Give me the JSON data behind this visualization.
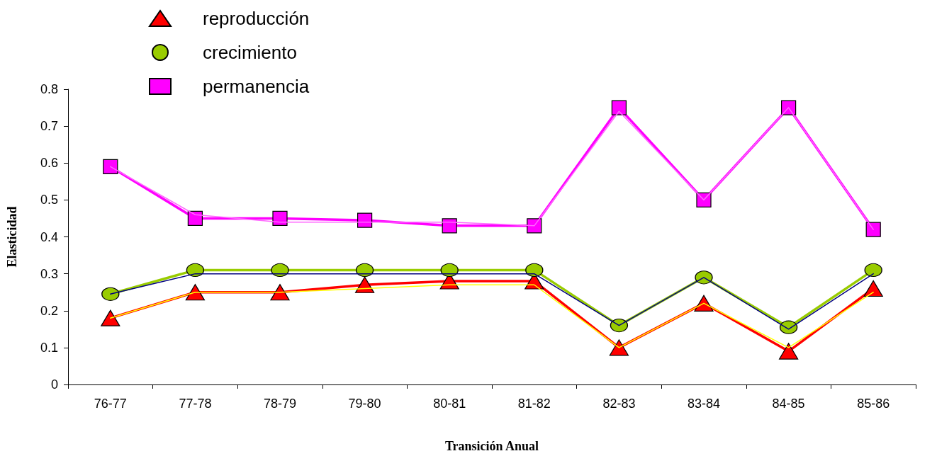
{
  "chart_data": {
    "type": "line",
    "xlabel": "Transición Anual",
    "ylabel": "Elasticidad",
    "categories": [
      "76-77",
      "77-78",
      "78-79",
      "79-80",
      "80-81",
      "81-82",
      "82-83",
      "83-84",
      "84-85",
      "85-86"
    ],
    "ylim": [
      0,
      0.8
    ],
    "yticks": [
      0,
      0.1,
      0.2,
      0.3,
      0.4,
      0.5,
      0.6,
      0.7,
      0.8
    ],
    "grid": false,
    "legend": "top left",
    "line_style": "solid",
    "series": [
      {
        "color": "#ffff00",
        "marker": "none",
        "values": [
          0.18,
          0.25,
          0.25,
          0.26,
          0.27,
          0.27,
          0.1,
          0.22,
          0.1,
          0.25
        ]
      },
      {
        "color": "#000080",
        "marker": "none",
        "values": [
          0.245,
          0.3,
          0.3,
          0.3,
          0.3,
          0.3,
          0.16,
          0.29,
          0.15,
          0.3
        ]
      },
      {
        "color": "#ff66ff",
        "marker": "none",
        "values": [
          0.59,
          0.46,
          0.44,
          0.44,
          0.44,
          0.43,
          0.74,
          0.5,
          0.75,
          0.42
        ]
      },
      {
        "name": "reproducción",
        "color": "#ff0000",
        "marker": "triangle",
        "values": [
          0.18,
          0.25,
          0.25,
          0.27,
          0.28,
          0.28,
          0.1,
          0.22,
          0.09,
          0.26
        ]
      },
      {
        "name": "crecimiento",
        "color": "#99cc00",
        "marker": "circle",
        "values": [
          0.245,
          0.31,
          0.31,
          0.31,
          0.31,
          0.31,
          0.16,
          0.29,
          0.155,
          0.31
        ]
      },
      {
        "name": "permanencia",
        "color": "#ff00ff",
        "marker": "square",
        "values": [
          0.59,
          0.45,
          0.45,
          0.445,
          0.43,
          0.43,
          0.75,
          0.5,
          0.75,
          0.42
        ]
      }
    ]
  }
}
